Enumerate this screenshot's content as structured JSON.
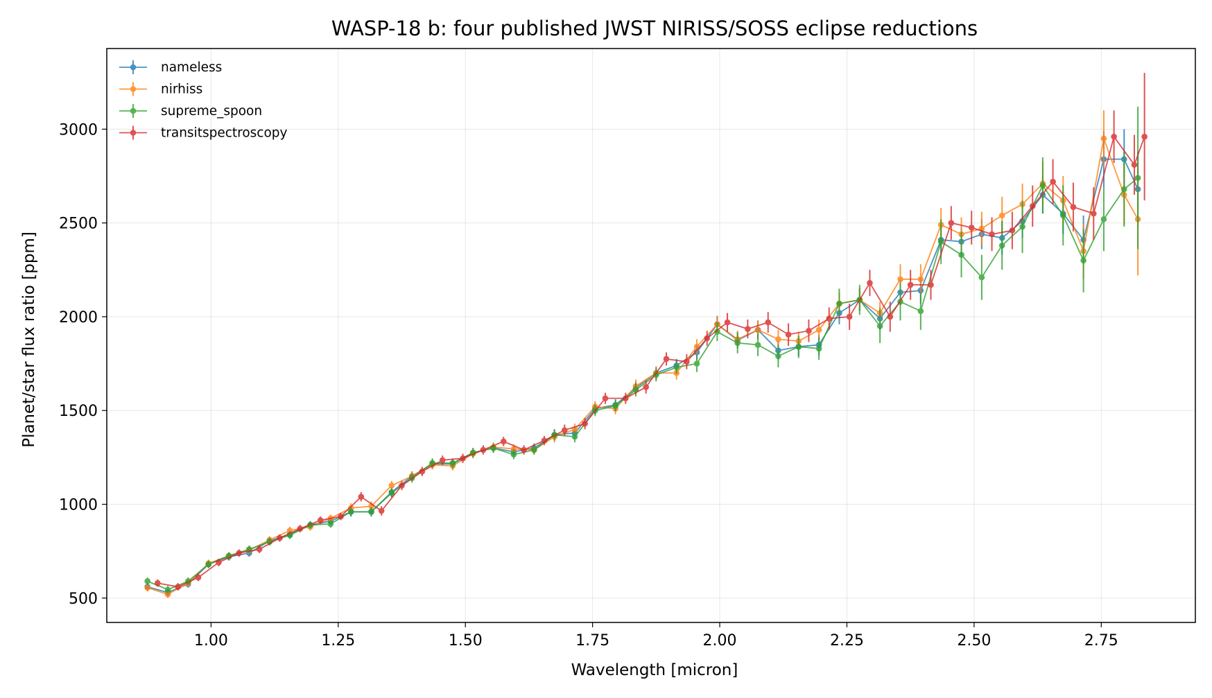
{
  "chart_data": {
    "type": "line",
    "title": "WASP-18 b: four published JWST NIRISS/SOSS eclipse reductions",
    "xlabel": "Wavelength [micron]",
    "ylabel": "Planet/star flux ratio [ppm]",
    "xlim": [
      0.795,
      2.935
    ],
    "ylim": [
      370,
      3430
    ],
    "x_ticks": [
      1.0,
      1.25,
      1.5,
      1.75,
      2.0,
      2.25,
      2.5,
      2.75
    ],
    "x_tick_labels": [
      "1.00",
      "1.25",
      "1.50",
      "1.75",
      "2.00",
      "2.25",
      "2.50",
      "2.75"
    ],
    "y_ticks": [
      500,
      1000,
      1500,
      2000,
      2500,
      3000
    ],
    "y_tick_labels": [
      "500",
      "1000",
      "1500",
      "2000",
      "2500",
      "3000"
    ],
    "grid": true,
    "error_bars": true,
    "legend_position": "top-left",
    "series": [
      {
        "name": "nameless",
        "color": "#1f77b4",
        "x": [
          0.875,
          0.915,
          0.955,
          0.995,
          1.035,
          1.075,
          1.115,
          1.155,
          1.195,
          1.235,
          1.275,
          1.315,
          1.355,
          1.395,
          1.435,
          1.475,
          1.515,
          1.555,
          1.595,
          1.635,
          1.675,
          1.715,
          1.755,
          1.795,
          1.835,
          1.875,
          1.915,
          1.955,
          1.995,
          2.035,
          2.075,
          2.115,
          2.155,
          2.195,
          2.235,
          2.275,
          2.315,
          2.355,
          2.395,
          2.435,
          2.475,
          2.515,
          2.555,
          2.595,
          2.635,
          2.675,
          2.715,
          2.755,
          2.795,
          2.822
        ],
        "y": [
          560,
          530,
          575,
          680,
          720,
          740,
          805,
          840,
          890,
          910,
          960,
          960,
          1065,
          1150,
          1215,
          1215,
          1275,
          1300,
          1280,
          1300,
          1370,
          1380,
          1510,
          1530,
          1620,
          1700,
          1740,
          1810,
          1960,
          1875,
          1930,
          1820,
          1840,
          1850,
          2020,
          2090,
          1990,
          2130,
          2140,
          2410,
          2400,
          2440,
          2420,
          2510,
          2650,
          2550,
          2410,
          2840,
          2840,
          2680
        ],
        "err": [
          20,
          20,
          20,
          20,
          20,
          20,
          20,
          20,
          20,
          20,
          25,
          25,
          25,
          25,
          25,
          25,
          25,
          25,
          25,
          25,
          30,
          30,
          30,
          30,
          35,
          35,
          35,
          40,
          45,
          45,
          50,
          50,
          50,
          55,
          60,
          60,
          60,
          70,
          70,
          80,
          80,
          80,
          90,
          90,
          100,
          110,
          130,
          150,
          160,
          200
        ]
      },
      {
        "name": "nirhiss",
        "color": "#ff7f0e",
        "x": [
          0.875,
          0.915,
          0.955,
          0.995,
          1.035,
          1.075,
          1.115,
          1.155,
          1.195,
          1.235,
          1.275,
          1.315,
          1.355,
          1.395,
          1.435,
          1.475,
          1.515,
          1.555,
          1.595,
          1.635,
          1.675,
          1.715,
          1.755,
          1.795,
          1.835,
          1.875,
          1.915,
          1.955,
          1.995,
          2.035,
          2.075,
          2.115,
          2.155,
          2.195,
          2.235,
          2.275,
          2.315,
          2.355,
          2.395,
          2.435,
          2.475,
          2.515,
          2.555,
          2.595,
          2.635,
          2.675,
          2.715,
          2.755,
          2.795,
          2.822
        ],
        "y": [
          555,
          520,
          580,
          685,
          725,
          755,
          810,
          860,
          880,
          925,
          980,
          990,
          1100,
          1150,
          1210,
          1205,
          1270,
          1305,
          1295,
          1290,
          1360,
          1400,
          1520,
          1510,
          1630,
          1700,
          1700,
          1840,
          1960,
          1880,
          1930,
          1880,
          1870,
          1930,
          2070,
          2090,
          2020,
          2200,
          2200,
          2490,
          2440,
          2470,
          2540,
          2600,
          2710,
          2620,
          2350,
          2950,
          2650,
          2520
        ],
        "err": [
          20,
          20,
          20,
          20,
          20,
          20,
          20,
          20,
          20,
          20,
          25,
          25,
          25,
          25,
          25,
          25,
          25,
          25,
          25,
          25,
          30,
          30,
          30,
          30,
          35,
          35,
          35,
          40,
          45,
          45,
          50,
          50,
          50,
          55,
          60,
          60,
          60,
          80,
          80,
          90,
          90,
          90,
          100,
          110,
          120,
          130,
          150,
          150,
          160,
          300
        ]
      },
      {
        "name": "supreme_spoon",
        "color": "#2ca02c",
        "x": [
          0.875,
          0.915,
          0.955,
          0.995,
          1.035,
          1.075,
          1.115,
          1.155,
          1.195,
          1.235,
          1.275,
          1.315,
          1.355,
          1.395,
          1.435,
          1.475,
          1.515,
          1.555,
          1.595,
          1.635,
          1.675,
          1.715,
          1.755,
          1.795,
          1.835,
          1.875,
          1.915,
          1.955,
          1.995,
          2.035,
          2.075,
          2.115,
          2.155,
          2.195,
          2.235,
          2.275,
          2.315,
          2.355,
          2.395,
          2.435,
          2.475,
          2.515,
          2.555,
          2.595,
          2.635,
          2.675,
          2.715,
          2.755,
          2.795,
          2.822
        ],
        "y": [
          590,
          545,
          590,
          680,
          725,
          760,
          800,
          835,
          890,
          895,
          960,
          960,
          1060,
          1140,
          1220,
          1220,
          1275,
          1300,
          1265,
          1290,
          1370,
          1360,
          1500,
          1525,
          1610,
          1690,
          1730,
          1750,
          1920,
          1860,
          1850,
          1790,
          1840,
          1830,
          2070,
          2090,
          1950,
          2080,
          2030,
          2400,
          2330,
          2210,
          2380,
          2480,
          2700,
          2540,
          2300,
          2520,
          2680,
          2740
        ],
        "err": [
          20,
          20,
          20,
          20,
          20,
          20,
          20,
          20,
          20,
          20,
          25,
          25,
          25,
          25,
          25,
          25,
          25,
          25,
          25,
          25,
          30,
          30,
          30,
          30,
          35,
          35,
          35,
          45,
          50,
          55,
          60,
          60,
          60,
          60,
          80,
          80,
          90,
          100,
          100,
          120,
          120,
          120,
          130,
          140,
          150,
          160,
          170,
          170,
          200,
          380
        ]
      },
      {
        "name": "transitspectroscopy",
        "color": "#d62728",
        "x": [
          0.895,
          0.935,
          0.975,
          1.015,
          1.055,
          1.095,
          1.135,
          1.175,
          1.215,
          1.255,
          1.295,
          1.335,
          1.375,
          1.415,
          1.455,
          1.495,
          1.535,
          1.575,
          1.615,
          1.655,
          1.695,
          1.735,
          1.775,
          1.815,
          1.855,
          1.895,
          1.935,
          1.975,
          2.015,
          2.055,
          2.095,
          2.135,
          2.175,
          2.215,
          2.255,
          2.295,
          2.335,
          2.375,
          2.415,
          2.455,
          2.495,
          2.535,
          2.575,
          2.615,
          2.655,
          2.695,
          2.735,
          2.775,
          2.815,
          2.835
        ],
        "y": [
          580,
          560,
          610,
          690,
          740,
          760,
          820,
          870,
          915,
          935,
          1040,
          965,
          1100,
          1175,
          1235,
          1245,
          1290,
          1335,
          1290,
          1340,
          1395,
          1430,
          1565,
          1565,
          1625,
          1775,
          1760,
          1885,
          1970,
          1935,
          1970,
          1905,
          1925,
          1990,
          2000,
          2180,
          2000,
          2170,
          2170,
          2500,
          2475,
          2440,
          2460,
          2590,
          2720,
          2585,
          2550,
          2960,
          2810,
          2960
        ],
        "err": [
          20,
          20,
          20,
          20,
          20,
          20,
          20,
          20,
          20,
          20,
          25,
          25,
          25,
          25,
          25,
          25,
          25,
          25,
          25,
          25,
          30,
          30,
          30,
          30,
          35,
          35,
          40,
          40,
          50,
          50,
          55,
          60,
          60,
          60,
          70,
          70,
          80,
          80,
          80,
          90,
          90,
          90,
          100,
          110,
          120,
          130,
          140,
          140,
          160,
          340
        ]
      }
    ]
  }
}
